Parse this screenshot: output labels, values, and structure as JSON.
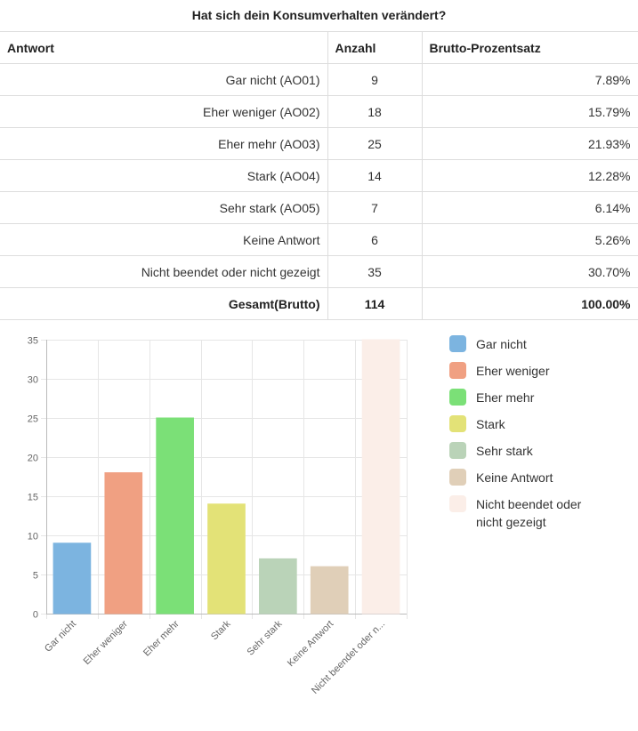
{
  "title": "Hat sich dein Konsumverhalten verändert?",
  "table": {
    "headers": [
      "Antwort",
      "Anzahl",
      "Brutto-Prozentsatz"
    ],
    "rows": [
      {
        "answer": "Gar nicht (AO01)",
        "count": "9",
        "percent": "7.89%"
      },
      {
        "answer": "Eher weniger (AO02)",
        "count": "18",
        "percent": "15.79%"
      },
      {
        "answer": "Eher mehr (AO03)",
        "count": "25",
        "percent": "21.93%"
      },
      {
        "answer": "Stark (AO04)",
        "count": "14",
        "percent": "12.28%"
      },
      {
        "answer": "Sehr stark (AO05)",
        "count": "7",
        "percent": "6.14%"
      },
      {
        "answer": "Keine Antwort",
        "count": "6",
        "percent": "5.26%"
      },
      {
        "answer": "Nicht beendet oder nicht gezeigt",
        "count": "35",
        "percent": "30.70%"
      }
    ],
    "total": {
      "answer": "Gesamt(Brutto)",
      "count": "114",
      "percent": "100.00%"
    }
  },
  "chart_data": {
    "type": "bar",
    "title": "",
    "xlabel": "",
    "ylabel": "",
    "ylim": [
      0,
      35
    ],
    "yticks": [
      0,
      5,
      10,
      15,
      20,
      25,
      30,
      35
    ],
    "grid": true,
    "legend_position": "right",
    "categories": [
      "Gar nicht",
      "Eher weniger",
      "Eher mehr",
      "Stark",
      "Sehr stark",
      "Keine Antwort",
      "Nicht beendet oder nicht gezeigt"
    ],
    "tick_labels": [
      "Gar nicht",
      "Eher weniger",
      "Eher mehr",
      "Stark",
      "Sehr stark",
      "Keine Antwort",
      "Nicht beendet oder n..."
    ],
    "values": [
      9,
      18,
      25,
      14,
      7,
      6,
      35
    ],
    "colors": [
      "#7cb4e0",
      "#f0a082",
      "#7be077",
      "#e3e277",
      "#bad3b8",
      "#e0cfb8",
      "#fbeee8"
    ],
    "legend_labels": [
      "Gar nicht",
      "Eher weniger",
      "Eher mehr",
      "Stark",
      "Sehr stark",
      "Keine Antwort",
      "Nicht beendet oder nicht gezeigt"
    ]
  }
}
